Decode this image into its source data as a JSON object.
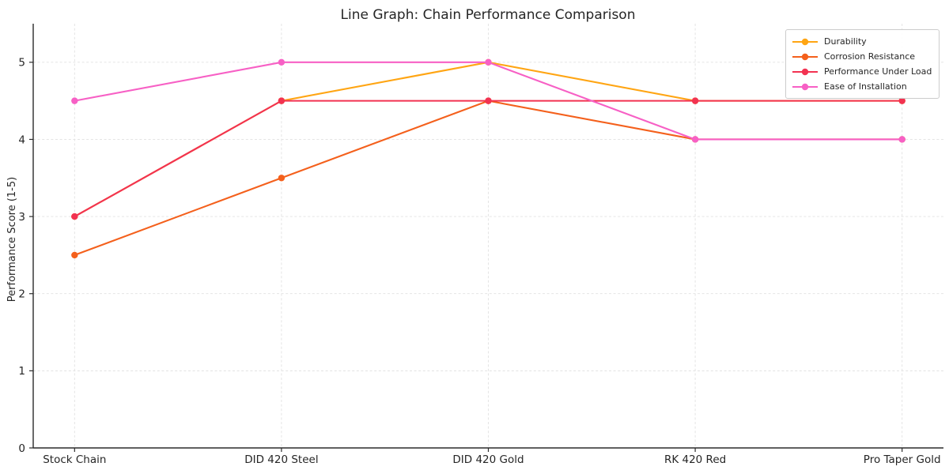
{
  "title": "Line Graph: Chain Performance Comparison",
  "chart_data": {
    "type": "line",
    "title": "Line Graph: Chain Performance Comparison",
    "xlabel": "",
    "ylabel": "Performance Score (1-5)",
    "categories": [
      "Stock Chain",
      "DID 420 Steel",
      "DID 420 Gold",
      "RK 420 Red",
      "Pro Taper Gold"
    ],
    "series": [
      {
        "name": "Durability",
        "color": "#FFA513",
        "values": [
          3.0,
          4.5,
          5.0,
          4.5,
          4.5
        ]
      },
      {
        "name": "Corrosion Resistance",
        "color": "#F4601C",
        "values": [
          2.5,
          3.5,
          4.5,
          4.0,
          4.0
        ]
      },
      {
        "name": "Performance Under Load",
        "color": "#F23251",
        "values": [
          3.0,
          4.5,
          4.5,
          4.5,
          4.5
        ]
      },
      {
        "name": "Ease of Installation",
        "color": "#F760C5",
        "values": [
          4.5,
          5.0,
          5.0,
          4.0,
          4.0
        ]
      }
    ],
    "yticks": [
      0,
      1,
      2,
      3,
      4,
      5
    ],
    "ylim": [
      0,
      5.5
    ],
    "grid": true,
    "grid_style": "dashed",
    "legend_position": "upper right"
  },
  "colors": {
    "background": "#ffffff",
    "grid": "#e1e1e1",
    "spine": "#2b2b2b",
    "text": "#262626",
    "legend_border": "#cccccc"
  }
}
